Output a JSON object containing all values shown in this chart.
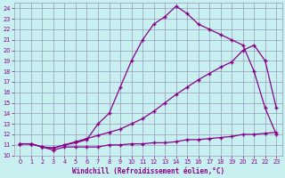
{
  "xlabel": "Windchill (Refroidissement éolien,°C)",
  "bg_color": "#c8f0f0",
  "grid_color": "#9999bb",
  "line_color": "#880088",
  "xlim": [
    -0.5,
    23.5
  ],
  "ylim": [
    10,
    24.5
  ],
  "xticks": [
    0,
    1,
    2,
    3,
    4,
    5,
    6,
    7,
    8,
    9,
    10,
    11,
    12,
    13,
    14,
    15,
    16,
    17,
    18,
    19,
    20,
    21,
    22,
    23
  ],
  "yticks": [
    10,
    11,
    12,
    13,
    14,
    15,
    16,
    17,
    18,
    19,
    20,
    21,
    22,
    23,
    24
  ],
  "line1_x": [
    0,
    1,
    2,
    3,
    4,
    5,
    6,
    7,
    8,
    9,
    10,
    11,
    12,
    13,
    14,
    15,
    16,
    17,
    18,
    19,
    20,
    21,
    22,
    23
  ],
  "line1_y": [
    11.1,
    11.1,
    10.8,
    10.5,
    10.8,
    10.8,
    10.8,
    10.8,
    11.0,
    11.0,
    11.1,
    11.1,
    11.2,
    11.2,
    11.3,
    11.5,
    11.5,
    11.6,
    11.7,
    11.8,
    12.0,
    12.0,
    12.1,
    12.2
  ],
  "line2_x": [
    0,
    1,
    2,
    3,
    4,
    5,
    6,
    7,
    8,
    9,
    10,
    11,
    12,
    13,
    14,
    15,
    16,
    17,
    18,
    19,
    20,
    21,
    22,
    23
  ],
  "line2_y": [
    11.1,
    11.1,
    10.8,
    10.7,
    11.0,
    11.3,
    11.6,
    11.9,
    12.2,
    12.5,
    13.0,
    13.5,
    14.2,
    15.0,
    15.8,
    16.5,
    17.2,
    17.8,
    18.4,
    18.9,
    20.0,
    20.5,
    19.0,
    14.5
  ],
  "line3_x": [
    0,
    1,
    2,
    3,
    4,
    5,
    6,
    7,
    8,
    9,
    10,
    11,
    12,
    13,
    14,
    15,
    16,
    17,
    18,
    19,
    20,
    21,
    22,
    23
  ],
  "line3_y": [
    11.1,
    11.1,
    10.8,
    10.7,
    11.0,
    11.2,
    11.5,
    13.0,
    14.0,
    16.5,
    19.0,
    21.0,
    22.5,
    23.2,
    24.2,
    23.5,
    22.5,
    22.0,
    21.5,
    21.0,
    20.5,
    18.0,
    14.5,
    12.0
  ]
}
